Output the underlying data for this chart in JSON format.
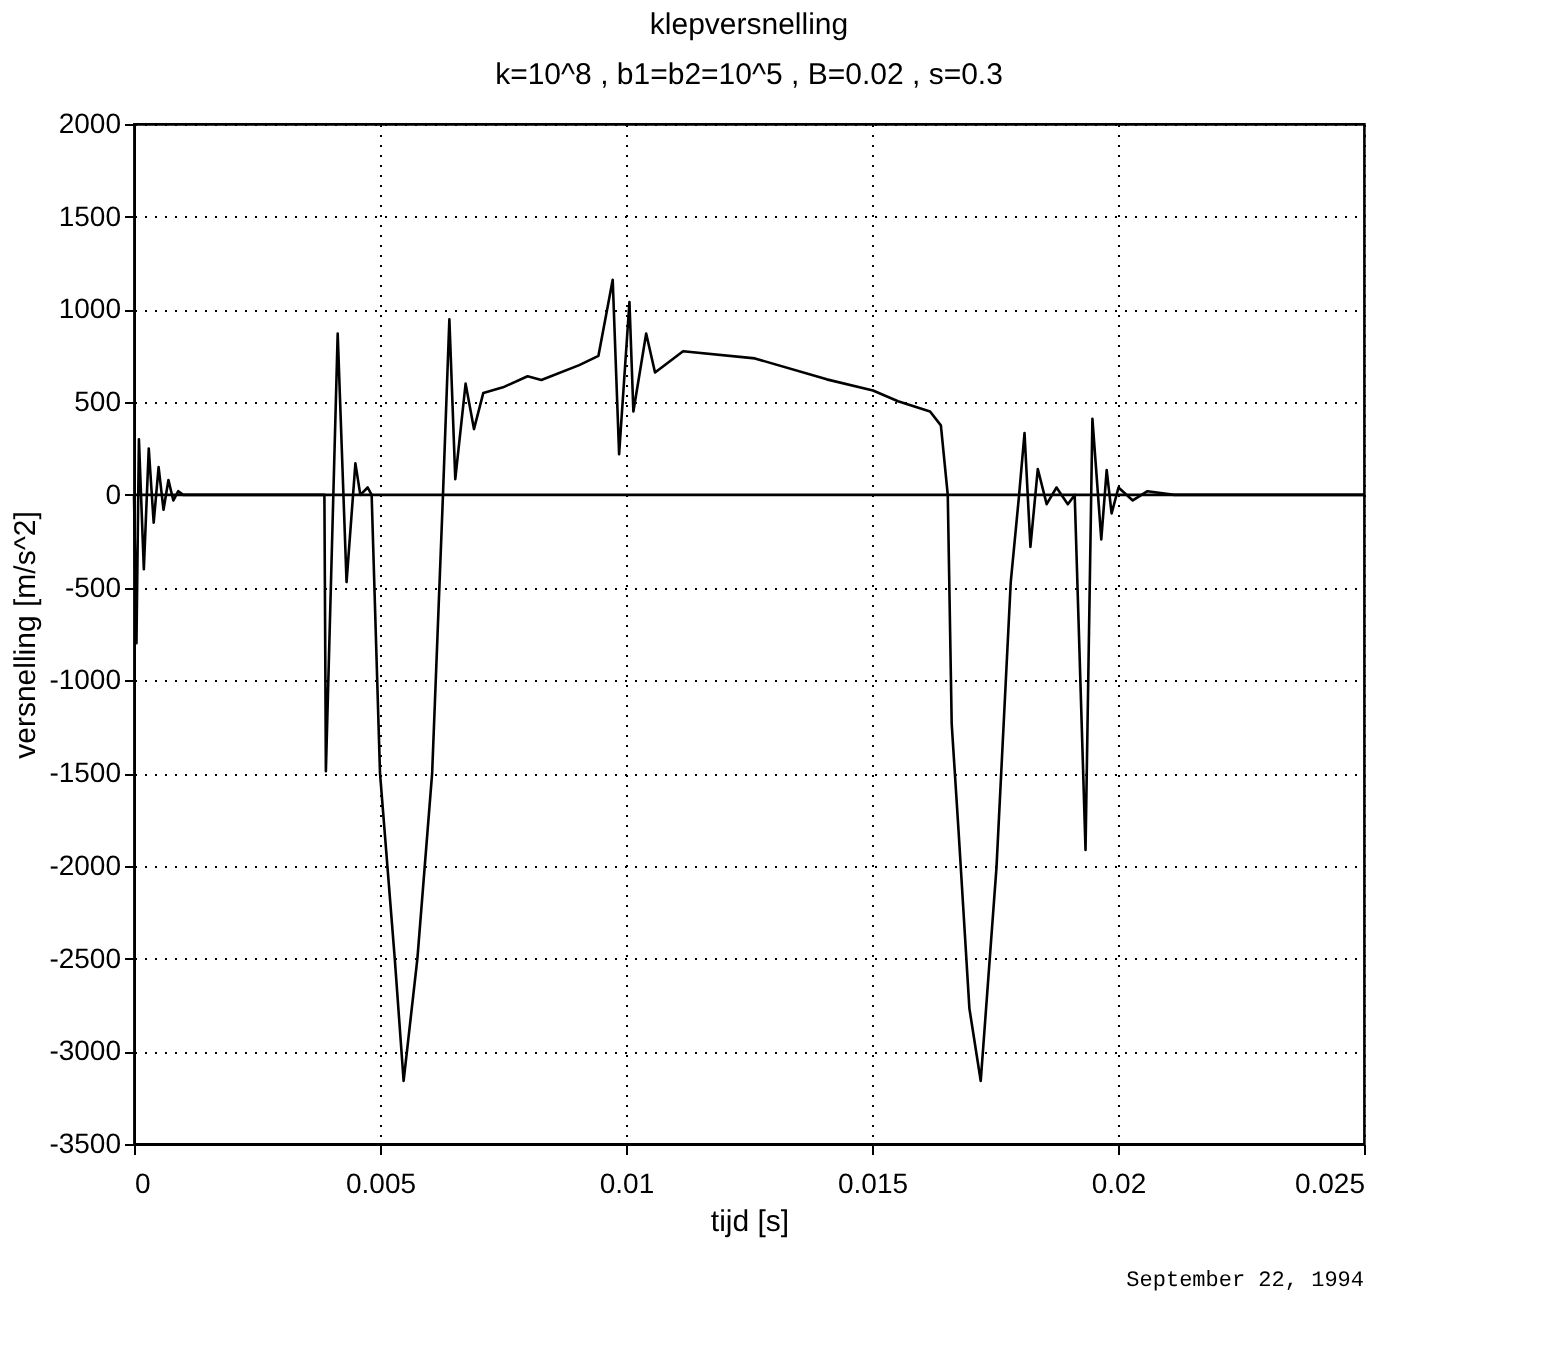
{
  "chart_data": {
    "type": "line",
    "title": "klepversnelling",
    "subtitle": "k=10^8 , b1=b2=10^5 , B=0.02 , s=0.3",
    "xlabel": "tijd [s]",
    "ylabel": "versnelling [m/s^2]",
    "x": [
      0,
      5e-05,
      0.0001,
      0.0002,
      0.0003,
      0.0004,
      0.0005,
      0.0006,
      0.0007,
      0.0008,
      0.0009,
      0.001,
      0.00387,
      0.0039,
      0.00414,
      0.00432,
      0.0045,
      0.0046,
      0.00475,
      0.00483,
      0.005,
      0.0053,
      0.00548,
      0.00576,
      0.00606,
      0.00628,
      0.00641,
      0.00653,
      0.00674,
      0.00691,
      0.0071,
      0.0075,
      0.008,
      0.00828,
      0.00905,
      0.00944,
      0.00973,
      0.00986,
      0.01007,
      0.01015,
      0.01041,
      0.01059,
      0.01116,
      0.01262,
      0.01408,
      0.01502,
      0.01553,
      0.01618,
      0.0164,
      0.01654,
      0.01662,
      0.01676,
      0.01698,
      0.01721,
      0.01753,
      0.01782,
      0.01799,
      0.0181,
      0.01822,
      0.01837,
      0.01855,
      0.01875,
      0.01898,
      0.01912,
      0.01934,
      0.01948,
      0.01966,
      0.01977,
      0.01987,
      0.02001,
      0.0203,
      0.0206,
      0.02114,
      0.025
    ],
    "series": [
      {
        "color": "#000000",
        "values": [
          0,
          -800,
          300,
          -400,
          250,
          -150,
          150,
          -80,
          80,
          -30,
          20,
          0,
          0,
          -1490,
          870,
          -470,
          170,
          0,
          40,
          0,
          -1500,
          -2500,
          -3160,
          -2500,
          -1500,
          0,
          947,
          85,
          600,
          355,
          550,
          580,
          640,
          620,
          700,
          750,
          1160,
          220,
          1040,
          450,
          870,
          660,
          775,
          736,
          623,
          563,
          505,
          450,
          375,
          0,
          -1235,
          -1815,
          -2770,
          -3160,
          -2010,
          -470,
          0,
          333,
          -280,
          140,
          -50,
          40,
          -50,
          0,
          -1915,
          410,
          -240,
          134,
          -100,
          40,
          -30,
          20,
          0,
          0
        ]
      }
    ],
    "xlim": [
      0,
      0.025
    ],
    "xticks": [
      0,
      0.005,
      0.01,
      0.015,
      0.02,
      0.025
    ],
    "ylim": [
      -3500,
      2000
    ],
    "yticks": [
      -3500,
      -3000,
      -2500,
      -2000,
      -1500,
      -1000,
      -500,
      0,
      500,
      1000,
      1500,
      2000
    ],
    "grid": true,
    "line_style": "solid",
    "marker": "none",
    "ref_lines": [
      {
        "axis": "y",
        "value": 0,
        "color": "#000000"
      }
    ],
    "annotations": [
      "September 22, 1994"
    ]
  }
}
